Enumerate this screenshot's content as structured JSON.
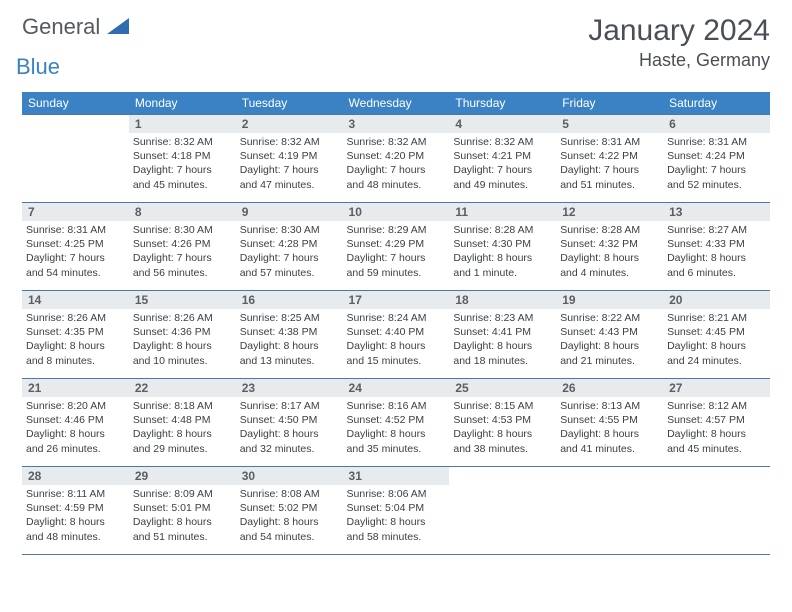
{
  "logo": {
    "general": "General",
    "blue": "Blue"
  },
  "title": "January 2024",
  "location": "Haste, Germany",
  "day_headers": [
    "Sunday",
    "Monday",
    "Tuesday",
    "Wednesday",
    "Thursday",
    "Friday",
    "Saturday"
  ],
  "colors": {
    "accent": "#3b82c4",
    "grid_border": "#4a77a8",
    "day_bg": "#e8ebed",
    "text": "#3a3f44"
  },
  "weeks": [
    [
      null,
      {
        "n": "1",
        "sr": "Sunrise: 8:32 AM",
        "ss": "Sunset: 4:18 PM",
        "d1": "Daylight: 7 hours",
        "d2": "and 45 minutes."
      },
      {
        "n": "2",
        "sr": "Sunrise: 8:32 AM",
        "ss": "Sunset: 4:19 PM",
        "d1": "Daylight: 7 hours",
        "d2": "and 47 minutes."
      },
      {
        "n": "3",
        "sr": "Sunrise: 8:32 AM",
        "ss": "Sunset: 4:20 PM",
        "d1": "Daylight: 7 hours",
        "d2": "and 48 minutes."
      },
      {
        "n": "4",
        "sr": "Sunrise: 8:32 AM",
        "ss": "Sunset: 4:21 PM",
        "d1": "Daylight: 7 hours",
        "d2": "and 49 minutes."
      },
      {
        "n": "5",
        "sr": "Sunrise: 8:31 AM",
        "ss": "Sunset: 4:22 PM",
        "d1": "Daylight: 7 hours",
        "d2": "and 51 minutes."
      },
      {
        "n": "6",
        "sr": "Sunrise: 8:31 AM",
        "ss": "Sunset: 4:24 PM",
        "d1": "Daylight: 7 hours",
        "d2": "and 52 minutes."
      }
    ],
    [
      {
        "n": "7",
        "sr": "Sunrise: 8:31 AM",
        "ss": "Sunset: 4:25 PM",
        "d1": "Daylight: 7 hours",
        "d2": "and 54 minutes."
      },
      {
        "n": "8",
        "sr": "Sunrise: 8:30 AM",
        "ss": "Sunset: 4:26 PM",
        "d1": "Daylight: 7 hours",
        "d2": "and 56 minutes."
      },
      {
        "n": "9",
        "sr": "Sunrise: 8:30 AM",
        "ss": "Sunset: 4:28 PM",
        "d1": "Daylight: 7 hours",
        "d2": "and 57 minutes."
      },
      {
        "n": "10",
        "sr": "Sunrise: 8:29 AM",
        "ss": "Sunset: 4:29 PM",
        "d1": "Daylight: 7 hours",
        "d2": "and 59 minutes."
      },
      {
        "n": "11",
        "sr": "Sunrise: 8:28 AM",
        "ss": "Sunset: 4:30 PM",
        "d1": "Daylight: 8 hours",
        "d2": "and 1 minute."
      },
      {
        "n": "12",
        "sr": "Sunrise: 8:28 AM",
        "ss": "Sunset: 4:32 PM",
        "d1": "Daylight: 8 hours",
        "d2": "and 4 minutes."
      },
      {
        "n": "13",
        "sr": "Sunrise: 8:27 AM",
        "ss": "Sunset: 4:33 PM",
        "d1": "Daylight: 8 hours",
        "d2": "and 6 minutes."
      }
    ],
    [
      {
        "n": "14",
        "sr": "Sunrise: 8:26 AM",
        "ss": "Sunset: 4:35 PM",
        "d1": "Daylight: 8 hours",
        "d2": "and 8 minutes."
      },
      {
        "n": "15",
        "sr": "Sunrise: 8:26 AM",
        "ss": "Sunset: 4:36 PM",
        "d1": "Daylight: 8 hours",
        "d2": "and 10 minutes."
      },
      {
        "n": "16",
        "sr": "Sunrise: 8:25 AM",
        "ss": "Sunset: 4:38 PM",
        "d1": "Daylight: 8 hours",
        "d2": "and 13 minutes."
      },
      {
        "n": "17",
        "sr": "Sunrise: 8:24 AM",
        "ss": "Sunset: 4:40 PM",
        "d1": "Daylight: 8 hours",
        "d2": "and 15 minutes."
      },
      {
        "n": "18",
        "sr": "Sunrise: 8:23 AM",
        "ss": "Sunset: 4:41 PM",
        "d1": "Daylight: 8 hours",
        "d2": "and 18 minutes."
      },
      {
        "n": "19",
        "sr": "Sunrise: 8:22 AM",
        "ss": "Sunset: 4:43 PM",
        "d1": "Daylight: 8 hours",
        "d2": "and 21 minutes."
      },
      {
        "n": "20",
        "sr": "Sunrise: 8:21 AM",
        "ss": "Sunset: 4:45 PM",
        "d1": "Daylight: 8 hours",
        "d2": "and 24 minutes."
      }
    ],
    [
      {
        "n": "21",
        "sr": "Sunrise: 8:20 AM",
        "ss": "Sunset: 4:46 PM",
        "d1": "Daylight: 8 hours",
        "d2": "and 26 minutes."
      },
      {
        "n": "22",
        "sr": "Sunrise: 8:18 AM",
        "ss": "Sunset: 4:48 PM",
        "d1": "Daylight: 8 hours",
        "d2": "and 29 minutes."
      },
      {
        "n": "23",
        "sr": "Sunrise: 8:17 AM",
        "ss": "Sunset: 4:50 PM",
        "d1": "Daylight: 8 hours",
        "d2": "and 32 minutes."
      },
      {
        "n": "24",
        "sr": "Sunrise: 8:16 AM",
        "ss": "Sunset: 4:52 PM",
        "d1": "Daylight: 8 hours",
        "d2": "and 35 minutes."
      },
      {
        "n": "25",
        "sr": "Sunrise: 8:15 AM",
        "ss": "Sunset: 4:53 PM",
        "d1": "Daylight: 8 hours",
        "d2": "and 38 minutes."
      },
      {
        "n": "26",
        "sr": "Sunrise: 8:13 AM",
        "ss": "Sunset: 4:55 PM",
        "d1": "Daylight: 8 hours",
        "d2": "and 41 minutes."
      },
      {
        "n": "27",
        "sr": "Sunrise: 8:12 AM",
        "ss": "Sunset: 4:57 PM",
        "d1": "Daylight: 8 hours",
        "d2": "and 45 minutes."
      }
    ],
    [
      {
        "n": "28",
        "sr": "Sunrise: 8:11 AM",
        "ss": "Sunset: 4:59 PM",
        "d1": "Daylight: 8 hours",
        "d2": "and 48 minutes."
      },
      {
        "n": "29",
        "sr": "Sunrise: 8:09 AM",
        "ss": "Sunset: 5:01 PM",
        "d1": "Daylight: 8 hours",
        "d2": "and 51 minutes."
      },
      {
        "n": "30",
        "sr": "Sunrise: 8:08 AM",
        "ss": "Sunset: 5:02 PM",
        "d1": "Daylight: 8 hours",
        "d2": "and 54 minutes."
      },
      {
        "n": "31",
        "sr": "Sunrise: 8:06 AM",
        "ss": "Sunset: 5:04 PM",
        "d1": "Daylight: 8 hours",
        "d2": "and 58 minutes."
      },
      null,
      null,
      null
    ]
  ]
}
